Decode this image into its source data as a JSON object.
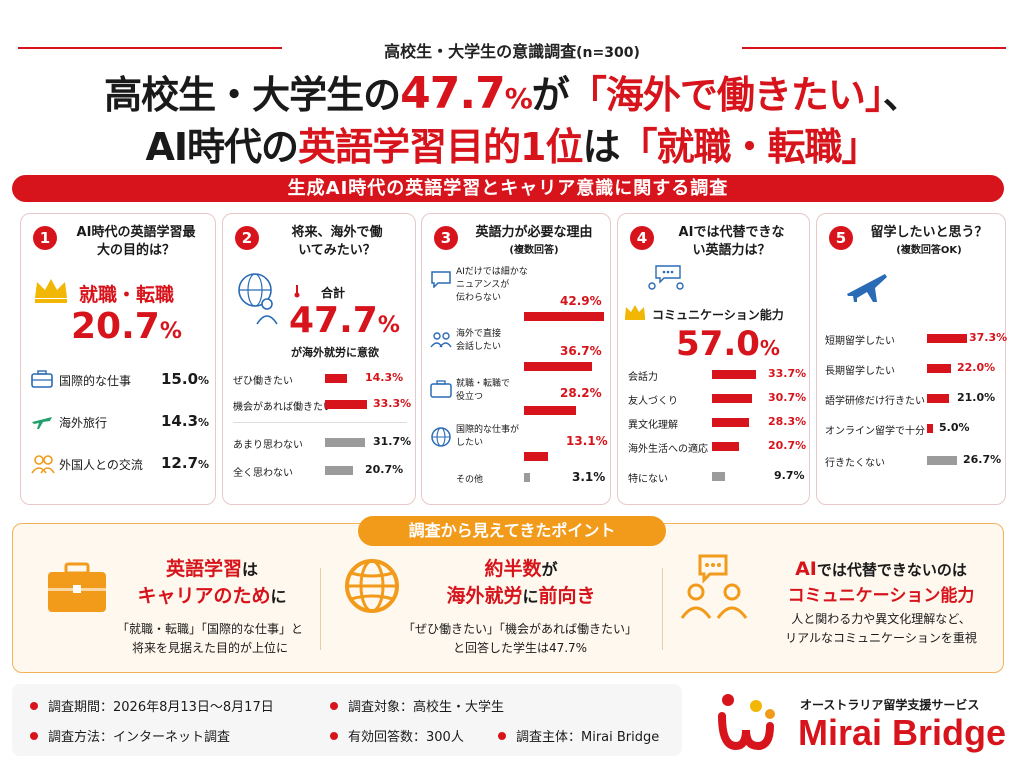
{
  "header": {
    "survey_title": "高校生・大学生の意識調査",
    "sample": "(n=300)",
    "headline1_a": "高校生・大学生の",
    "headline1_num": "47.7",
    "headline1_pct": "%",
    "headline1_b": "が",
    "headline1_quote": "「海外で働きたい」",
    "headline1_c": "、",
    "headline2_a": "AI時代の",
    "headline2_red": "英語学習目的1位",
    "headline2_b": "は",
    "headline2_quote": "「就職・転職」",
    "banner": "生成AI時代の英語学習とキャリア意識に関する調査"
  },
  "panel1": {
    "num": "1",
    "title": "AI時代の英語学習最大の目的は？",
    "top_label": "就職・転職",
    "top_value": "20.7",
    "top_pct": "%",
    "items": [
      {
        "label": "国際的な仕事",
        "value": "15.0",
        "pct": "%",
        "icon": "briefcase-icon"
      },
      {
        "label": "海外旅行",
        "value": "14.3",
        "pct": "%",
        "icon": "airplane-icon"
      },
      {
        "label": "外国人との交流",
        "value": "12.7",
        "pct": "%",
        "icon": "people-icon"
      }
    ]
  },
  "panel2": {
    "num": "2",
    "title": "将来、海外で働いてみたい？",
    "total_label": "合計",
    "total_value": "47.7",
    "total_pct": "%",
    "total_caption": "が海外就労に意欲",
    "items": [
      {
        "label": "ぜひ働きたい",
        "value": "14.3%",
        "color": "red"
      },
      {
        "label": "機会があれば働きたい",
        "value": "33.3%",
        "color": "red"
      },
      {
        "label": "あまり思わない",
        "value": "31.7%",
        "color": "gray"
      },
      {
        "label": "全く思わない",
        "value": "20.7%",
        "color": "gray"
      }
    ]
  },
  "panel3": {
    "num": "3",
    "title": "英語力が必要な理由",
    "subtitle": "(複数回答)",
    "items": [
      {
        "label1": "AIだけでは細かな",
        "label2": "ニュアンスが",
        "label3": "伝わらない",
        "value": "42.9%"
      },
      {
        "label1": "海外で直接",
        "label2": "会話したい",
        "label3": "",
        "value": "36.7%"
      },
      {
        "label1": "就職・転職で",
        "label2": "役立つ",
        "label3": "",
        "value": "28.2%"
      },
      {
        "label1": "国際的な仕事が",
        "label2": "したい",
        "label3": "",
        "value": "13.1%"
      },
      {
        "label1": "その他",
        "label2": "",
        "label3": "",
        "value": "3.1%"
      }
    ]
  },
  "panel4": {
    "num": "4",
    "title": "AIでは代替できない英語力は？",
    "top_label": "コミュニケーション能力",
    "top_value": "57.0",
    "top_pct": "%",
    "items": [
      {
        "label": "会話力",
        "value": "33.7%",
        "color": "red"
      },
      {
        "label": "友人づくり",
        "value": "30.7%",
        "color": "red"
      },
      {
        "label": "異文化理解",
        "value": "28.3%",
        "color": "red"
      },
      {
        "label": "海外生活への適応",
        "value": "20.7%",
        "color": "red"
      },
      {
        "label": "特にない",
        "value": "9.7%",
        "color": "gray"
      }
    ]
  },
  "panel5": {
    "num": "5",
    "title": "留学したいと思う？",
    "subtitle": "(複数回答OK)",
    "items": [
      {
        "label": "短期留学したい",
        "value": "37.3%",
        "color": "red"
      },
      {
        "label": "長期留学したい",
        "value": "22.0%",
        "color": "red"
      },
      {
        "label": "語学研修だけ行きたい",
        "value": "21.0%",
        "color": "red"
      },
      {
        "label": "オンライン留学で十分",
        "value": "5.0%",
        "color": "red"
      },
      {
        "label": "行きたくない",
        "value": "26.7%",
        "color": "gray"
      }
    ]
  },
  "points": {
    "label": "調査から見えてきたポイント",
    "p1_head1_red": "英語学習",
    "p1_head1_b": "は",
    "p1_head2_red": "キャリアのため",
    "p1_head2_b": "に",
    "p1_desc1": "「就職・転職」「国際的な仕事」と",
    "p1_desc2": "将来を見据えた目的が上位に",
    "p2_head1_red": "約半数",
    "p2_head1_b": "が",
    "p2_head2_red": "海外就労",
    "p2_head2_b": "に",
    "p2_head2_red2": "前向き",
    "p2_desc1": "「ぜひ働きたい」「機会があれば働きたい」",
    "p2_desc2": "と回答した学生は47.7%",
    "p3_head1_red": "AI",
    "p3_head1_b": "では代替できないのは",
    "p3_head2_red": "コミュニケーション能力",
    "p3_desc1": "人と関わる力や異文化理解など、",
    "p3_desc2": "リアルなコミュニケーションを重視"
  },
  "info": {
    "period": "調査期間：2026年8月13日〜8月17日",
    "method": "調査方法：インターネット調査",
    "target": "調査対象：高校生・大学生",
    "responses": "有効回答数：300人",
    "organizer": "調査主体：Mirai Bridge"
  },
  "brand": {
    "tagline": "オーストラリア留学支援サービス",
    "name": "Mirai Bridge"
  },
  "colors": {
    "accent": "#d7141b",
    "orange": "#f29a1a",
    "gray": "#9b9b9b"
  }
}
